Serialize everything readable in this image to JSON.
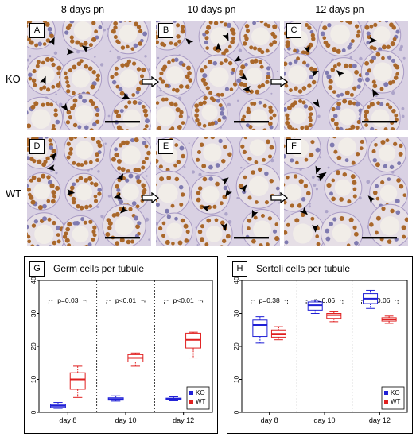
{
  "column_headers": [
    "8 days pn",
    "10 days pn",
    "12 days pn"
  ],
  "row_headers": [
    "KO",
    "WT"
  ],
  "panels": [
    {
      "label": "A",
      "row": 0,
      "col": 0
    },
    {
      "label": "B",
      "row": 0,
      "col": 1
    },
    {
      "label": "C",
      "row": 0,
      "col": 2
    },
    {
      "label": "D",
      "row": 1,
      "col": 0
    },
    {
      "label": "E",
      "row": 1,
      "col": 1
    },
    {
      "label": "F",
      "row": 1,
      "col": 2
    }
  ],
  "chart_data": [
    {
      "type": "box",
      "panel_label": "G",
      "title": "Germ cells per tubule",
      "categories": [
        "day 8",
        "day 10",
        "day 12"
      ],
      "ylim": [
        0,
        40
      ],
      "yticks": [
        0,
        10,
        20,
        30,
        40
      ],
      "p_values": [
        "p=0.03",
        "p<0.01",
        "p<0.01"
      ],
      "legend": {
        "placement": "bottom-right",
        "entries": [
          "KO",
          "WT"
        ]
      },
      "series": [
        {
          "name": "KO",
          "color": "#1f1fd6",
          "boxes": [
            {
              "min": 1.2,
              "q1": 1.5,
              "median": 2.0,
              "q3": 2.4,
              "max": 3.0
            },
            {
              "min": 3.4,
              "q1": 3.7,
              "median": 4.0,
              "q3": 4.4,
              "max": 5.0
            },
            {
              "min": 3.5,
              "q1": 3.8,
              "median": 4.0,
              "q3": 4.3,
              "max": 4.7
            }
          ]
        },
        {
          "name": "WT",
          "color": "#e01f1f",
          "boxes": [
            {
              "min": 4.5,
              "q1": 7.0,
              "median": 10.0,
              "q3": 12.0,
              "max": 14.0
            },
            {
              "min": 14.0,
              "q1": 15.3,
              "median": 16.5,
              "q3": 17.5,
              "max": 18.0
            },
            {
              "min": 16.5,
              "q1": 19.5,
              "median": 22.0,
              "q3": 24.0,
              "max": 24.3
            }
          ]
        }
      ]
    },
    {
      "type": "box",
      "panel_label": "H",
      "title": "Sertoli cells per tubule",
      "categories": [
        "day 8",
        "day 10",
        "day 12"
      ],
      "ylim": [
        0,
        40
      ],
      "yticks": [
        0,
        10,
        20,
        30,
        40
      ],
      "p_values": [
        "p=0.38",
        "p=0.06",
        "p=0.06"
      ],
      "legend": {
        "placement": "bottom-right",
        "entries": [
          "KO",
          "WT"
        ]
      },
      "series": [
        {
          "name": "KO",
          "color": "#1f1fd6",
          "boxes": [
            {
              "min": 21.0,
              "q1": 23.0,
              "median": 26.5,
              "q3": 28.0,
              "max": 29.0
            },
            {
              "min": 30.0,
              "q1": 31.0,
              "median": 32.5,
              "q3": 33.5,
              "max": 34.0
            },
            {
              "min": 31.5,
              "q1": 33.0,
              "median": 34.5,
              "q3": 36.0,
              "max": 37.0
            }
          ]
        },
        {
          "name": "WT",
          "color": "#e01f1f",
          "boxes": [
            {
              "min": 22.0,
              "q1": 22.8,
              "median": 23.8,
              "q3": 25.0,
              "max": 26.0
            },
            {
              "min": 27.5,
              "q1": 28.5,
              "median": 29.5,
              "q3": 30.0,
              "max": 30.5
            },
            {
              "min": 27.0,
              "q1": 27.7,
              "median": 28.2,
              "q3": 28.7,
              "max": 29.2
            }
          ]
        }
      ]
    }
  ]
}
